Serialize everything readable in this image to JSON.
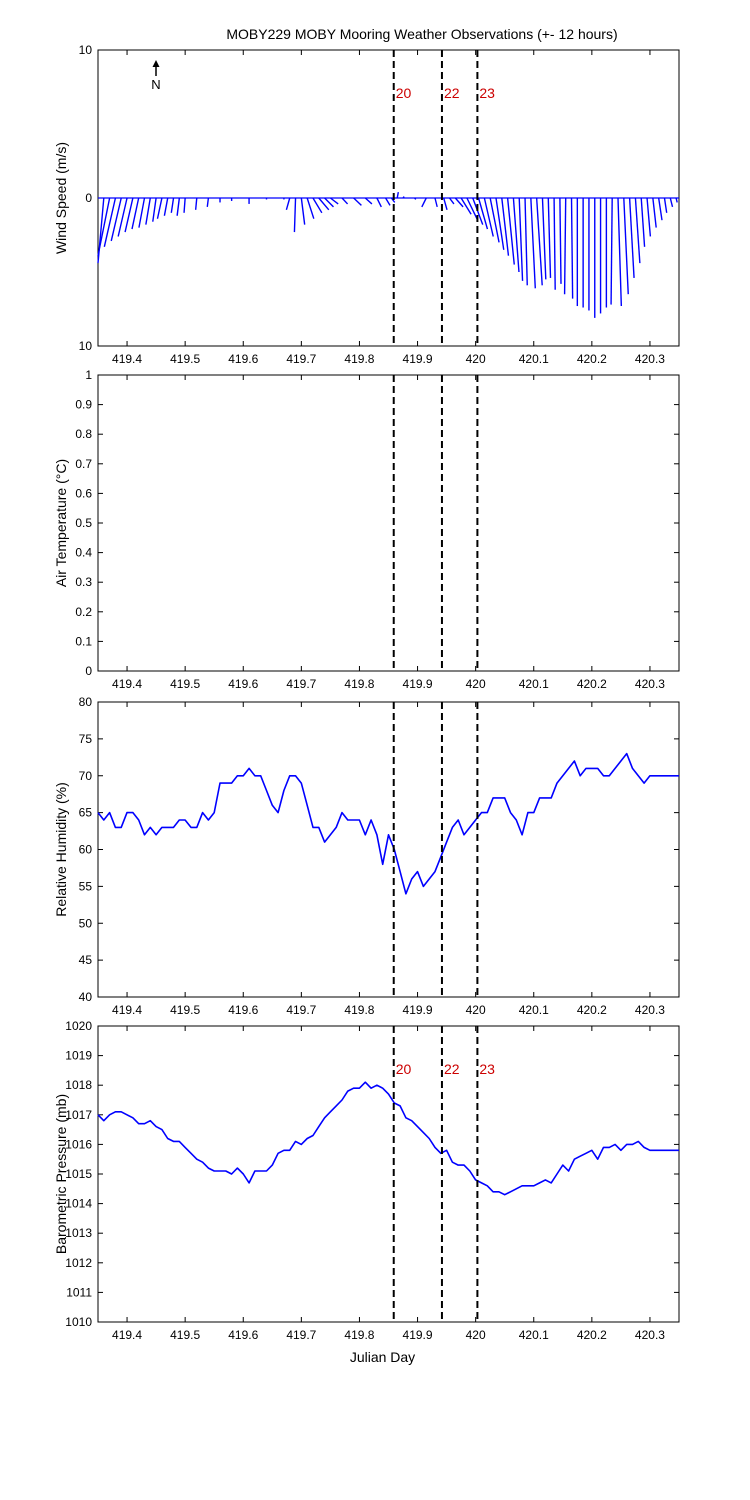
{
  "title": "MOBY229 MOBY Mooring Weather Observations (+- 12 hours)",
  "colors": {
    "series": "#0000ff",
    "marker_label": "#cc0000",
    "axes": "#000000"
  },
  "markers": [
    {
      "label": "20",
      "x": 419.859
    },
    {
      "label": "22",
      "x": 419.942
    },
    {
      "label": "23",
      "x": 420.003
    }
  ],
  "north_arrow": {
    "label": "N"
  },
  "chart_data": [
    {
      "type": "line",
      "id": "wind",
      "variant": "stick",
      "ylabel": "Wind Speed (m/s)",
      "xlim": [
        419.35,
        420.35
      ],
      "ylim": [
        -10,
        10
      ],
      "yticks": [
        -10,
        0,
        10
      ],
      "ytick_labels": [
        "10",
        "0",
        "10"
      ],
      "xticks": [
        419.4,
        419.5,
        419.6,
        419.7,
        419.8,
        419.9,
        420,
        420.1,
        420.2,
        420.3
      ],
      "xtick_labels": [
        "419.4",
        "419.5",
        "419.6",
        "419.7",
        "419.8",
        "419.9",
        "420",
        "420.1",
        "420.2",
        "420.3"
      ],
      "show_markers": true,
      "show_marker_labels": true,
      "sticks": [
        [
          419.36,
          -1.8,
          -4.4
        ],
        [
          419.37,
          -1.4,
          -3.9
        ],
        [
          419.38,
          -1.0,
          -3.3
        ],
        [
          419.39,
          -0.9,
          -2.9
        ],
        [
          419.4,
          -0.8,
          -2.6
        ],
        [
          419.41,
          -0.7,
          -2.3
        ],
        [
          419.42,
          -0.6,
          -2.1
        ],
        [
          419.43,
          -0.5,
          -2.0
        ],
        [
          419.44,
          -0.4,
          -1.8
        ],
        [
          419.45,
          -0.3,
          -1.6
        ],
        [
          419.46,
          -0.4,
          -1.4
        ],
        [
          419.47,
          -0.3,
          -1.2
        ],
        [
          419.48,
          -0.2,
          -1.0
        ],
        [
          419.49,
          -0.2,
          -1.2
        ],
        [
          419.5,
          -0.1,
          -1.0
        ],
        [
          419.52,
          -0.1,
          -0.8
        ],
        [
          419.54,
          -0.1,
          -0.6
        ],
        [
          419.56,
          0.0,
          -0.3
        ],
        [
          419.58,
          0.0,
          -0.2
        ],
        [
          419.61,
          0.0,
          -0.4
        ],
        [
          419.64,
          0.0,
          -0.1
        ],
        [
          419.67,
          0.0,
          -0.1
        ],
        [
          419.68,
          -0.3,
          -0.8
        ],
        [
          419.69,
          -0.1,
          -2.3
        ],
        [
          419.7,
          0.3,
          -1.8
        ],
        [
          419.71,
          0.6,
          -1.4
        ],
        [
          419.72,
          0.8,
          -1.0
        ],
        [
          419.73,
          0.9,
          -0.8
        ],
        [
          419.74,
          0.8,
          -0.6
        ],
        [
          419.75,
          0.7,
          -0.4
        ],
        [
          419.77,
          0.5,
          -0.4
        ],
        [
          419.79,
          0.7,
          -0.5
        ],
        [
          419.81,
          0.6,
          -0.4
        ],
        [
          419.83,
          0.4,
          -0.6
        ],
        [
          419.845,
          0.4,
          -0.5
        ],
        [
          419.855,
          0.3,
          -0.3
        ],
        [
          419.865,
          0.1,
          0.4
        ],
        [
          419.875,
          0.1,
          0.1
        ],
        [
          419.895,
          0.1,
          -0.1
        ],
        [
          419.915,
          -0.4,
          -0.6
        ],
        [
          419.93,
          0.2,
          -0.6
        ],
        [
          419.945,
          0.3,
          -0.8
        ],
        [
          419.955,
          0.4,
          -0.4
        ],
        [
          419.965,
          0.7,
          -0.6
        ],
        [
          419.975,
          0.9,
          -1.1
        ],
        [
          419.985,
          0.9,
          -1.4
        ],
        [
          419.995,
          0.9,
          -1.8
        ],
        [
          420.005,
          0.8,
          -2.1
        ],
        [
          420.015,
          0.8,
          -2.6
        ],
        [
          420.025,
          0.8,
          -3.0
        ],
        [
          420.035,
          0.7,
          -3.5
        ],
        [
          420.045,
          0.6,
          -3.9
        ],
        [
          420.055,
          0.6,
          -4.5
        ],
        [
          420.065,
          0.5,
          -5.0
        ],
        [
          420.075,
          0.3,
          -5.6
        ],
        [
          420.085,
          0.2,
          -5.9
        ],
        [
          420.095,
          0.4,
          -6.1
        ],
        [
          420.105,
          0.5,
          -5.9
        ],
        [
          420.115,
          0.3,
          -5.5
        ],
        [
          420.125,
          0.2,
          -5.4
        ],
        [
          420.135,
          0.1,
          -6.2
        ],
        [
          420.145,
          0.1,
          -5.8
        ],
        [
          420.155,
          -0.1,
          -6.5
        ],
        [
          420.165,
          0.1,
          -6.8
        ],
        [
          420.175,
          0.0,
          -7.3
        ],
        [
          420.185,
          0.0,
          -7.4
        ],
        [
          420.195,
          0.0,
          -7.6
        ],
        [
          420.205,
          0.0,
          -8.1
        ],
        [
          420.215,
          0.0,
          -7.8
        ],
        [
          420.225,
          0.0,
          -7.4
        ],
        [
          420.235,
          -0.1,
          -7.2
        ],
        [
          420.245,
          0.3,
          -7.3
        ],
        [
          420.255,
          0.4,
          -6.5
        ],
        [
          420.265,
          0.4,
          -5.4
        ],
        [
          420.275,
          0.4,
          -4.4
        ],
        [
          420.285,
          0.3,
          -3.3
        ],
        [
          420.295,
          0.3,
          -2.6
        ],
        [
          420.305,
          0.3,
          -2.0
        ],
        [
          420.315,
          0.3,
          -1.5
        ],
        [
          420.325,
          0.2,
          -1.0
        ],
        [
          420.335,
          0.2,
          -0.6
        ],
        [
          420.345,
          0.1,
          -0.3
        ]
      ]
    },
    {
      "type": "line",
      "id": "airtemp",
      "ylabel": "Air Temperature (°C)",
      "xlim": [
        419.35,
        420.35
      ],
      "ylim": [
        0,
        1
      ],
      "yticks": [
        0,
        0.1,
        0.2,
        0.3,
        0.4,
        0.5,
        0.6,
        0.7,
        0.8,
        0.9,
        1
      ],
      "ytick_labels": [
        "0",
        "0.1",
        "0.2",
        "0.3",
        "0.4",
        "0.5",
        "0.6",
        "0.7",
        "0.8",
        "0.9",
        "1"
      ],
      "xticks": [
        419.4,
        419.5,
        419.6,
        419.7,
        419.8,
        419.9,
        420,
        420.1,
        420.2,
        420.3
      ],
      "xtick_labels": [
        "419.4",
        "419.5",
        "419.6",
        "419.7",
        "419.8",
        "419.9",
        "420",
        "420.1",
        "420.2",
        "420.3"
      ],
      "show_markers": true,
      "show_marker_labels": false,
      "x": [],
      "y": []
    },
    {
      "type": "line",
      "id": "humidity",
      "ylabel": "Relative Humidity (%)",
      "xlim": [
        419.35,
        420.35
      ],
      "ylim": [
        40,
        80
      ],
      "yticks": [
        40,
        45,
        50,
        55,
        60,
        65,
        70,
        75,
        80
      ],
      "ytick_labels": [
        "40",
        "45",
        "50",
        "55",
        "60",
        "65",
        "70",
        "75",
        "80"
      ],
      "xticks": [
        419.4,
        419.5,
        419.6,
        419.7,
        419.8,
        419.9,
        420,
        420.1,
        420.2,
        420.3
      ],
      "xtick_labels": [
        "419.4",
        "419.5",
        "419.6",
        "419.7",
        "419.8",
        "419.9",
        "420",
        "420.1",
        "420.2",
        "420.3"
      ],
      "show_markers": true,
      "show_marker_labels": false,
      "x": [
        419.35,
        419.36,
        419.37,
        419.38,
        419.39,
        419.4,
        419.41,
        419.42,
        419.43,
        419.44,
        419.45,
        419.46,
        419.47,
        419.48,
        419.49,
        419.5,
        419.51,
        419.52,
        419.53,
        419.54,
        419.55,
        419.56,
        419.57,
        419.58,
        419.59,
        419.6,
        419.61,
        419.62,
        419.63,
        419.64,
        419.65,
        419.66,
        419.67,
        419.68,
        419.69,
        419.7,
        419.71,
        419.72,
        419.73,
        419.74,
        419.75,
        419.76,
        419.77,
        419.78,
        419.79,
        419.8,
        419.81,
        419.82,
        419.83,
        419.84,
        419.85,
        419.86,
        419.87,
        419.88,
        419.89,
        419.9,
        419.91,
        419.92,
        419.93,
        419.94,
        419.95,
        419.96,
        419.97,
        419.98,
        419.99,
        420.0,
        420.01,
        420.02,
        420.03,
        420.04,
        420.05,
        420.06,
        420.07,
        420.08,
        420.09,
        420.1,
        420.11,
        420.12,
        420.13,
        420.14,
        420.15,
        420.16,
        420.17,
        420.18,
        420.19,
        420.2,
        420.21,
        420.22,
        420.23,
        420.24,
        420.25,
        420.26,
        420.27,
        420.28,
        420.29,
        420.3,
        420.31,
        420.32,
        420.33,
        420.34,
        420.35
      ],
      "y": [
        65,
        64,
        65,
        63,
        63,
        65,
        65,
        64,
        62,
        63,
        62,
        63,
        63,
        63,
        64,
        64,
        63,
        63,
        65,
        64,
        65,
        69,
        69,
        69,
        70,
        70,
        71,
        70,
        70,
        68,
        66,
        65,
        68,
        70,
        70,
        69,
        66,
        63,
        63,
        61,
        62,
        63,
        65,
        64,
        64,
        64,
        62,
        64,
        62,
        58,
        62,
        60,
        57,
        54,
        56,
        57,
        55,
        56,
        57,
        59,
        61,
        63,
        64,
        62,
        63,
        64,
        65,
        65,
        67,
        67,
        67,
        65,
        64,
        62,
        65,
        65,
        67,
        67,
        67,
        69,
        70,
        71,
        72,
        70,
        71,
        71,
        71,
        70,
        70,
        71,
        72,
        73,
        71,
        70,
        69,
        70,
        70,
        70,
        70,
        70,
        70
      ],
      "note_trim": 96
    },
    {
      "type": "line",
      "id": "pressure",
      "ylabel": "Barometric Pressure (mb)",
      "xlabel": "Julian Day",
      "xlim": [
        419.35,
        420.35
      ],
      "ylim": [
        1010,
        1020
      ],
      "yticks": [
        1010,
        1011,
        1012,
        1013,
        1014,
        1015,
        1016,
        1017,
        1018,
        1019,
        1020
      ],
      "ytick_labels": [
        "1010",
        "1011",
        "1012",
        "1013",
        "1014",
        "1015",
        "1016",
        "1017",
        "1018",
        "1019",
        "1020"
      ],
      "xticks": [
        419.4,
        419.5,
        419.6,
        419.7,
        419.8,
        419.9,
        420,
        420.1,
        420.2,
        420.3
      ],
      "xtick_labels": [
        "419.4",
        "419.5",
        "419.6",
        "419.7",
        "419.8",
        "419.9",
        "420",
        "420.1",
        "420.2",
        "420.3"
      ],
      "show_markers": true,
      "show_marker_labels": true,
      "x": [
        419.35,
        419.36,
        419.37,
        419.38,
        419.39,
        419.4,
        419.41,
        419.42,
        419.43,
        419.44,
        419.45,
        419.46,
        419.47,
        419.48,
        419.49,
        419.5,
        419.51,
        419.52,
        419.53,
        419.54,
        419.55,
        419.56,
        419.57,
        419.58,
        419.59,
        419.6,
        419.61,
        419.62,
        419.63,
        419.64,
        419.65,
        419.66,
        419.67,
        419.68,
        419.69,
        419.7,
        419.71,
        419.72,
        419.73,
        419.74,
        419.75,
        419.76,
        419.77,
        419.78,
        419.79,
        419.8,
        419.81,
        419.82,
        419.83,
        419.84,
        419.85,
        419.86,
        419.87,
        419.88,
        419.89,
        419.9,
        419.91,
        419.92,
        419.93,
        419.94,
        419.95,
        419.96,
        419.97,
        419.98,
        419.99,
        420.0,
        420.01,
        420.02,
        420.03,
        420.04,
        420.05,
        420.06,
        420.07,
        420.08,
        420.09,
        420.1,
        420.11,
        420.12,
        420.13,
        420.14,
        420.15,
        420.16,
        420.17,
        420.18,
        420.19,
        420.2,
        420.21,
        420.22,
        420.23,
        420.24,
        420.25,
        420.26,
        420.27,
        420.28,
        420.29,
        420.3,
        420.31,
        420.32,
        420.33,
        420.34,
        420.35
      ],
      "y": [
        1017.0,
        1016.8,
        1017.0,
        1017.1,
        1017.1,
        1017.0,
        1016.9,
        1016.7,
        1016.7,
        1016.8,
        1016.6,
        1016.5,
        1016.2,
        1016.1,
        1016.1,
        1015.9,
        1015.7,
        1015.5,
        1015.4,
        1015.2,
        1015.1,
        1015.1,
        1015.1,
        1015.0,
        1015.2,
        1015.0,
        1014.7,
        1015.1,
        1015.1,
        1015.1,
        1015.3,
        1015.7,
        1015.8,
        1015.8,
        1016.1,
        1016.0,
        1016.2,
        1016.3,
        1016.6,
        1016.9,
        1017.1,
        1017.3,
        1017.5,
        1017.8,
        1017.9,
        1017.9,
        1018.1,
        1017.9,
        1018.0,
        1017.9,
        1017.7,
        1017.4,
        1017.3,
        1016.9,
        1016.8,
        1016.6,
        1016.4,
        1016.2,
        1015.9,
        1015.7,
        1015.8,
        1015.4,
        1015.3,
        1015.3,
        1015.1,
        1014.8,
        1014.7,
        1014.6,
        1014.4,
        1014.4,
        1014.3,
        1014.4,
        1014.5,
        1014.6,
        1014.6,
        1014.6,
        1014.7,
        1014.8,
        1014.7,
        1015.0,
        1015.3,
        1015.1,
        1015.5,
        1015.6,
        1015.7,
        1015.8,
        1015.5,
        1015.9,
        1015.9,
        1016.0,
        1015.8,
        1016.0,
        1016.0,
        1016.1,
        1015.9,
        1015.8,
        1015.8,
        1015.8,
        1015.8,
        1015.8,
        1015.8
      ],
      "note_trim": 97
    }
  ]
}
